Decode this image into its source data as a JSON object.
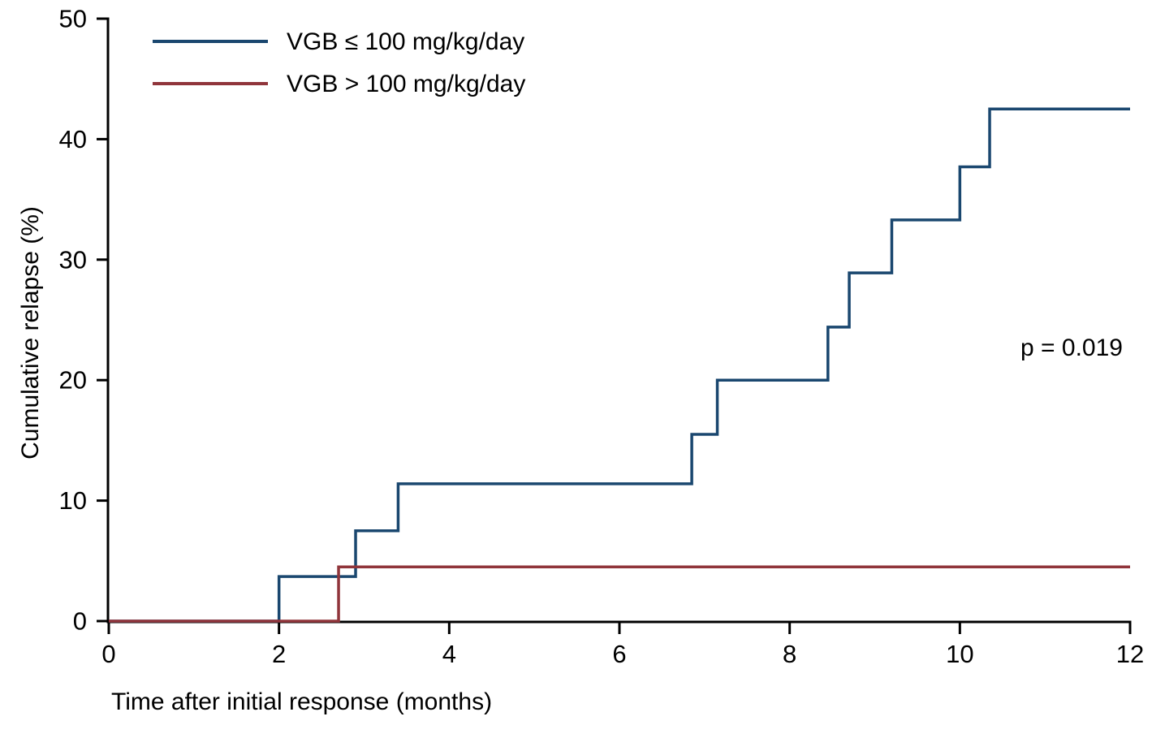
{
  "chart_data": {
    "type": "line",
    "subtype": "step",
    "title": "",
    "xlabel": "Time after initial response (months)",
    "ylabel": "Cumulative relapse (%)",
    "xlim": [
      0,
      12
    ],
    "ylim": [
      0,
      50
    ],
    "x_ticks": [
      0,
      2,
      4,
      6,
      8,
      10,
      12
    ],
    "y_ticks": [
      0,
      10,
      20,
      30,
      40,
      50
    ],
    "grid": false,
    "legend_position": "top-left-inside",
    "annotation": "p = 0.019",
    "axis_color": "#000000",
    "series": [
      {
        "name": "VGB ≤ 100 mg/kg/day",
        "color": "#1a476f",
        "steps": [
          {
            "t": 0,
            "v": 0
          },
          {
            "t": 2.0,
            "v": 3.7
          },
          {
            "t": 2.9,
            "v": 7.5
          },
          {
            "t": 3.4,
            "v": 11.4
          },
          {
            "t": 6.85,
            "v": 15.5
          },
          {
            "t": 7.15,
            "v": 20.0
          },
          {
            "t": 8.45,
            "v": 24.4
          },
          {
            "t": 8.7,
            "v": 28.9
          },
          {
            "t": 9.2,
            "v": 33.3
          },
          {
            "t": 10.0,
            "v": 37.7
          },
          {
            "t": 10.35,
            "v": 42.5
          },
          {
            "t": 12,
            "v": 42.5
          }
        ]
      },
      {
        "name": "VGB > 100 mg/kg/day",
        "color": "#90353b",
        "steps": [
          {
            "t": 0,
            "v": 0
          },
          {
            "t": 2.7,
            "v": 4.5
          },
          {
            "t": 12,
            "v": 4.5
          }
        ]
      }
    ]
  }
}
